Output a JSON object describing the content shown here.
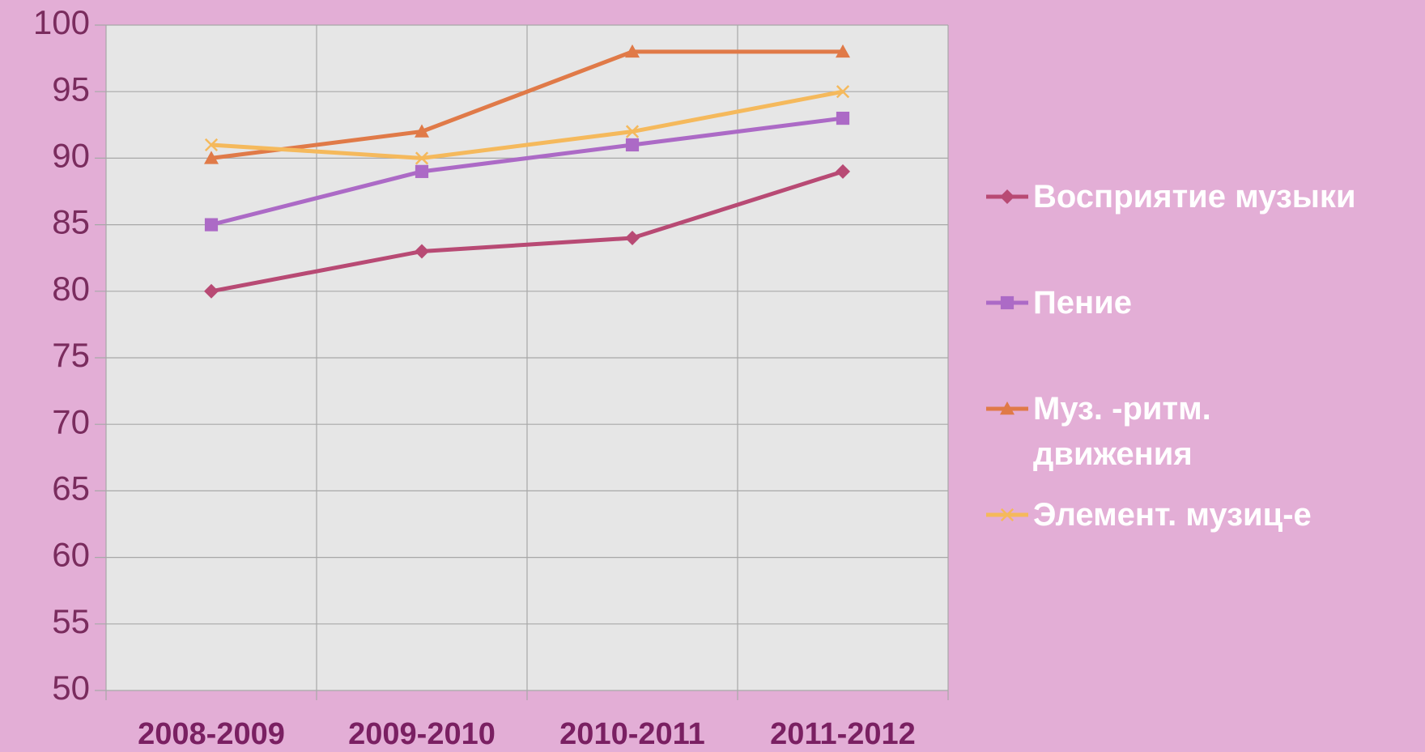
{
  "chart_data": {
    "type": "line",
    "categories": [
      "2008-2009",
      "2009-2010",
      "2010-2011",
      "2011-2012"
    ],
    "series": [
      {
        "name": "Восприятие музыки",
        "color": "#b84a74",
        "marker": "diamond",
        "values": [
          80,
          83,
          84,
          89
        ]
      },
      {
        "name": "Пение",
        "color": "#ac6ac6",
        "marker": "square",
        "values": [
          85,
          89,
          91,
          93
        ]
      },
      {
        "name": "Муз. -ритм. движения",
        "color": "#e07a48",
        "marker": "triangle",
        "values": [
          90,
          92,
          98,
          98
        ]
      },
      {
        "name": "Элемент. музиц-е",
        "color": "#f5b95c",
        "marker": "x",
        "values": [
          91,
          90,
          92,
          95
        ]
      }
    ],
    "ylim": [
      50,
      100
    ],
    "yticks": [
      50,
      55,
      60,
      65,
      70,
      75,
      80,
      85,
      90,
      95,
      100
    ],
    "grid": true,
    "legend": "right"
  }
}
